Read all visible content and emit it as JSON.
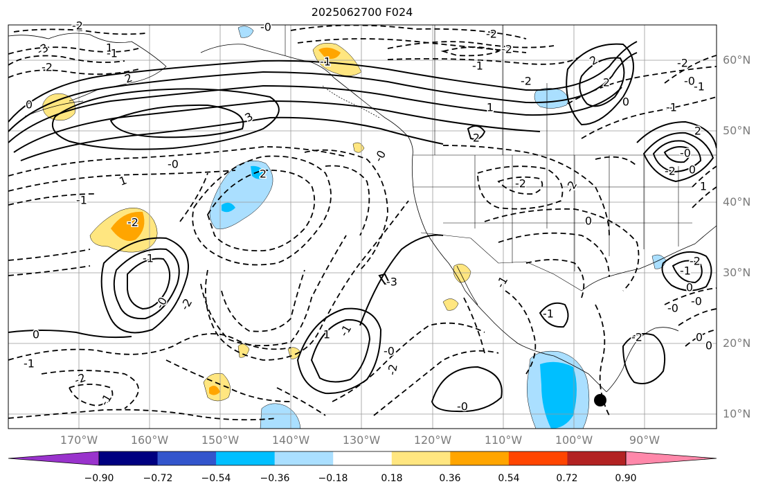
{
  "title": "2025062700 F024",
  "lat_labels": [
    "60°N",
    "50°N",
    "40°N",
    "30°N",
    "20°N",
    "10°N"
  ],
  "lon_labels": [
    "170°W",
    "160°W",
    "150°W",
    "140°W",
    "130°W",
    "120°W",
    "110°W",
    "100°W",
    "90°W"
  ],
  "colorbar": {
    "tick_labels": [
      "−0.90",
      "−0.72",
      "−0.54",
      "−0.36",
      "−0.18",
      "0.18",
      "0.36",
      "0.54",
      "0.72",
      "0.90"
    ],
    "colors": [
      "#9933cc",
      "#000080",
      "#3355cc",
      "#00bfff",
      "#aadfff",
      "#ffffff",
      "#ffe680",
      "#ffa500",
      "#ff4500",
      "#b22222",
      "#ff88aa"
    ]
  },
  "contour_labels": [
    "-3",
    "-2",
    "0",
    "1",
    "2",
    "-2",
    "-1",
    "-0",
    "-2",
    "-2",
    "2",
    "-1",
    "1",
    "-2",
    "0",
    "-1",
    "2",
    "3",
    "-0",
    "1",
    "-1",
    "-0",
    "-2",
    "-2",
    "0",
    "2",
    "2",
    "-1",
    "-2",
    "-0",
    "-1",
    "2",
    "-0",
    "-2",
    "0",
    "-2",
    "-1",
    "-0",
    "-2",
    "-3",
    "0",
    "-1",
    "-2",
    "-1",
    "1",
    "-1",
    "-2",
    "-0",
    "-0",
    "-1",
    "-1",
    "-1",
    "-2",
    "0",
    "-0",
    "-0",
    "0",
    "0",
    "-2",
    "1"
  ]
}
